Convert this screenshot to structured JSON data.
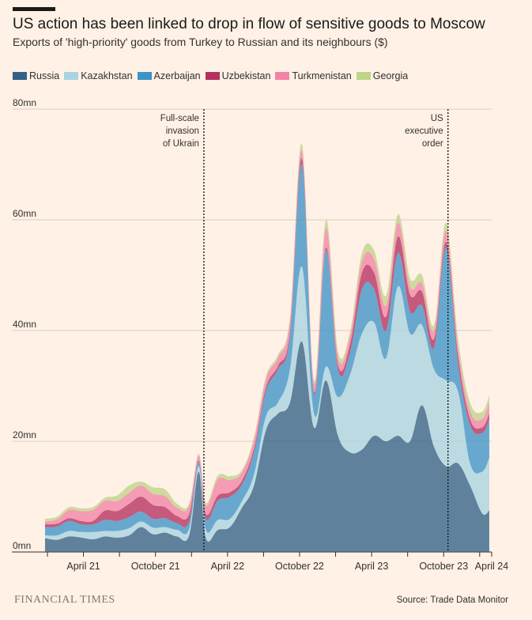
{
  "header": {
    "title": "US action has been linked to drop in flow of sensitive goods to Moscow",
    "subtitle": "Exports of 'high-priority' goods from Turkey to Russian and its neighbours ($)"
  },
  "footer": {
    "brand": "FINANCIAL TIMES",
    "source": "Source: Trade Data Monitor"
  },
  "colors": {
    "background": "#fff1e5",
    "gridline": "#d9cec4",
    "text": "#33302e"
  },
  "chart_data": {
    "type": "area",
    "stacked": true,
    "title": "US action has been linked to drop in flow of sensitive goods to Moscow",
    "subtitle": "Exports of 'high-priority' goods from Turkey to Russian and its neighbours ($)",
    "xlabel": "",
    "ylabel": "",
    "unit": "mn",
    "ylim": [
      0,
      80
    ],
    "yticks": [
      0,
      20,
      40,
      60,
      80
    ],
    "ytick_labels": [
      "0mn",
      "20mn",
      "40mn",
      "60mn",
      "80mn"
    ],
    "x_range_months": [
      0,
      37
    ],
    "xtick_months": [
      3,
      9,
      15,
      21,
      27,
      33,
      37
    ],
    "xtick_labels": [
      "April 21",
      "October 21",
      "April 22",
      "October 22",
      "April 23",
      "October 23",
      "April 24"
    ],
    "months": [
      "2021-01",
      "2021-02",
      "2021-03",
      "2021-04",
      "2021-05",
      "2021-06",
      "2021-07",
      "2021-08",
      "2021-09",
      "2021-10",
      "2021-11",
      "2021-12",
      "2022-01",
      "2022-02",
      "2022-03",
      "2022-04",
      "2022-05",
      "2022-06",
      "2022-07",
      "2022-08",
      "2022-09",
      "2022-10",
      "2022-11",
      "2022-12",
      "2023-01",
      "2023-02",
      "2023-03",
      "2023-04",
      "2023-05",
      "2023-06",
      "2023-07",
      "2023-08",
      "2023-09",
      "2023-10",
      "2023-11",
      "2023-12",
      "2024-01",
      "2024-02",
      "2024-03"
    ],
    "x": [
      -0.2,
      0.8,
      1.8,
      2.8,
      3.8,
      4.8,
      5.8,
      6.8,
      7.8,
      8.8,
      9.8,
      10.8,
      11.8,
      12.6,
      13.2,
      14.2,
      15.2,
      16.2,
      17.2,
      18.2,
      19.2,
      20.2,
      21.2,
      22.2,
      23.2,
      24.2,
      25.2,
      26.2,
      27.2,
      28.2,
      29.2,
      30.2,
      31.2,
      32.2,
      33.2,
      34.2,
      35.2,
      36.2,
      36.8
    ],
    "series": [
      {
        "name": "Russia",
        "color": "#336187",
        "values": [
          2.5,
          2.2,
          2.8,
          2.6,
          2.3,
          2.8,
          2.6,
          3.0,
          4.5,
          3.2,
          3.5,
          2.8,
          3.0,
          14.5,
          2.5,
          4.0,
          4.5,
          8.0,
          12.0,
          22.0,
          25.0,
          27.0,
          38.0,
          22.5,
          31.0,
          21.0,
          18.0,
          18.5,
          21.0,
          20.0,
          21.0,
          20.0,
          26.5,
          19.0,
          15.5,
          16.0,
          12.0,
          7.0,
          7.5
        ]
      },
      {
        "name": "Kazakhstan",
        "color": "#a8d4e2",
        "values": [
          0.5,
          0.8,
          1.0,
          1.0,
          1.3,
          1.0,
          1.2,
          1.3,
          1.0,
          1.2,
          1.0,
          1.2,
          1.2,
          1.0,
          1.5,
          1.8,
          1.5,
          1.2,
          2.0,
          2.5,
          2.0,
          6.0,
          13.5,
          2.5,
          2.5,
          7.0,
          14.0,
          21.0,
          20.5,
          15.0,
          27.0,
          19.5,
          14.5,
          14.0,
          15.5,
          13.0,
          4.0,
          7.5,
          9.5
        ]
      },
      {
        "name": "Azerbaijan",
        "color": "#3d93c8",
        "values": [
          1.5,
          1.6,
          1.8,
          1.4,
          1.4,
          2.0,
          1.8,
          2.0,
          1.8,
          1.6,
          1.6,
          1.2,
          1.3,
          0.8,
          2.0,
          3.5,
          4.0,
          3.0,
          4.0,
          4.5,
          6.0,
          6.0,
          18.5,
          3.5,
          21.0,
          5.0,
          4.0,
          8.0,
          6.0,
          5.0,
          6.0,
          4.0,
          3.5,
          4.0,
          24.0,
          5.0,
          7.0,
          7.0,
          7.0
        ]
      },
      {
        "name": "Uzbekistan",
        "color": "#b5305f",
        "values": [
          0.5,
          0.5,
          0.5,
          0.6,
          0.6,
          1.7,
          1.8,
          2.4,
          2.7,
          2.5,
          2.0,
          1.3,
          1.3,
          0.2,
          0.9,
          0.9,
          0.8,
          0.7,
          0.7,
          0.7,
          0.6,
          0.8,
          1.0,
          0.5,
          0.5,
          0.8,
          1.5,
          3.0,
          3.0,
          2.5,
          3.0,
          3.0,
          2.5,
          1.5,
          1.0,
          1.5,
          1.0,
          1.0,
          1.0
        ]
      },
      {
        "name": "Turkmenistan",
        "color": "#f284a6",
        "values": [
          0.5,
          0.8,
          1.5,
          1.8,
          2.0,
          1.8,
          1.8,
          2.0,
          2.0,
          2.0,
          2.0,
          1.5,
          1.5,
          1.0,
          1.5,
          3.0,
          2.2,
          1.5,
          1.5,
          1.5,
          1.5,
          2.0,
          1.5,
          1.5,
          3.5,
          1.5,
          1.5,
          2.0,
          2.5,
          2.0,
          2.5,
          1.5,
          1.5,
          1.5,
          2.0,
          1.5,
          1.5,
          1.5,
          2.0
        ]
      },
      {
        "name": "Georgia",
        "color": "#bed589",
        "values": [
          0.5,
          0.5,
          0.5,
          0.5,
          0.5,
          0.5,
          1.0,
          1.3,
          0.7,
          1.2,
          1.2,
          0.7,
          0.4,
          0.2,
          0.5,
          0.6,
          0.7,
          0.4,
          0.5,
          0.5,
          0.5,
          0.6,
          1.2,
          0.5,
          1.5,
          1.0,
          0.8,
          1.5,
          1.5,
          1.8,
          1.5,
          1.5,
          1.5,
          1.0,
          1.5,
          1.5,
          1.5,
          1.3,
          1.3
        ]
      }
    ],
    "annotations": [
      {
        "month": 13.03,
        "lines": [
          "Full-scale",
          "invasion",
          "of Ukrain"
        ],
        "align": "right"
      },
      {
        "month": 33.36,
        "lines": [
          "US",
          "executive",
          "order"
        ],
        "align": "right"
      }
    ],
    "legend_position": "top-left"
  }
}
